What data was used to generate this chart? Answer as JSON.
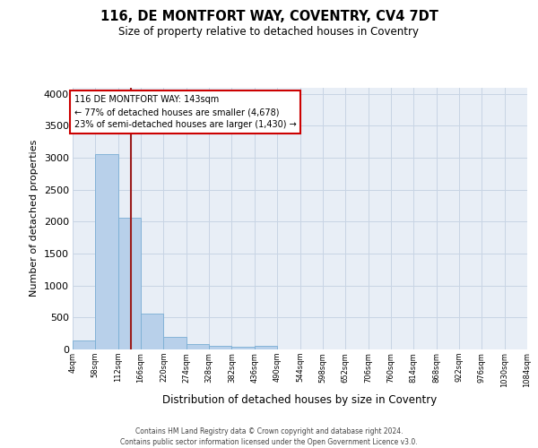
{
  "title": "116, DE MONTFORT WAY, COVENTRY, CV4 7DT",
  "subtitle": "Size of property relative to detached houses in Coventry",
  "xlabel": "Distribution of detached houses by size in Coventry",
  "ylabel": "Number of detached properties",
  "bin_edges": [
    4,
    58,
    112,
    166,
    220,
    274,
    328,
    382,
    436,
    490,
    544,
    598,
    652,
    706,
    760,
    814,
    868,
    922,
    976,
    1030,
    1084
  ],
  "bar_heights": [
    140,
    3060,
    2060,
    560,
    200,
    80,
    55,
    40,
    50,
    0,
    0,
    0,
    0,
    0,
    0,
    0,
    0,
    0,
    0,
    0
  ],
  "bar_color": "#b8d0ea",
  "bar_edge_color": "#7aaed4",
  "property_line_x": 143,
  "property_line_color": "#9b1c1c",
  "annotation_text": "116 DE MONTFORT WAY: 143sqm\n← 77% of detached houses are smaller (4,678)\n23% of semi-detached houses are larger (1,430) →",
  "annotation_box_facecolor": "#ffffff",
  "annotation_box_edgecolor": "#cc0000",
  "grid_color": "#c8d4e4",
  "bg_color": "#e8eef6",
  "ylim": [
    0,
    4100
  ],
  "yticks": [
    0,
    500,
    1000,
    1500,
    2000,
    2500,
    3000,
    3500,
    4000
  ],
  "footer_line1": "Contains HM Land Registry data © Crown copyright and database right 2024.",
  "footer_line2": "Contains public sector information licensed under the Open Government Licence v3.0."
}
